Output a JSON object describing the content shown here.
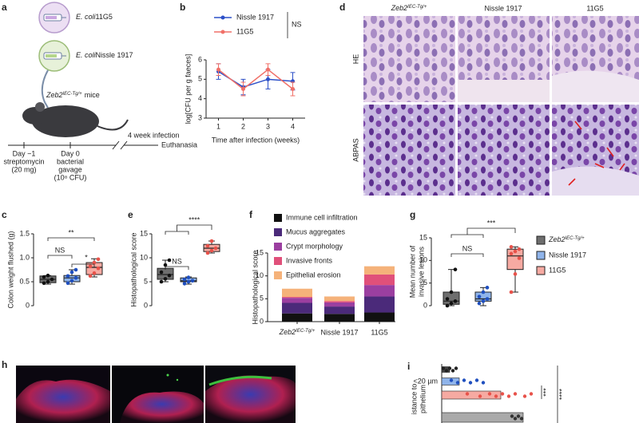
{
  "panel_labels": [
    "a",
    "b",
    "c",
    "d",
    "e",
    "f",
    "g",
    "h",
    "i"
  ],
  "schematic": {
    "strains": [
      {
        "species": "E. coli",
        "strain": "11G5"
      },
      {
        "species": "E. coli",
        "strain": "Nissle 1917"
      }
    ],
    "mouse": {
      "gene": "Zeb2",
      "superscript": "IEC-Tg/+",
      "label": "mice"
    },
    "infection": "4 week infection",
    "timeline": [
      [
        "Day −1",
        "streptomycin",
        "(20 mg)"
      ],
      [
        "Day 0",
        "bacterial",
        "gavage",
        "(10⁸ CFU)"
      ],
      [
        "Euthanasia"
      ]
    ]
  },
  "histology": {
    "columns": [
      {
        "gene": "Zeb2",
        "superscript": "IEC-Tg/+"
      },
      {
        "name": "Nissle 1917"
      },
      {
        "name": "11G5"
      }
    ],
    "rows": [
      "HE",
      "ABPAS"
    ]
  },
  "chart_data": [
    {
      "type": "line",
      "ylabel": "log[CFU per g faeces]",
      "xlabel": "Time after infection (weeks)",
      "x": [
        1,
        2,
        3,
        4
      ],
      "xlim": [
        0.5,
        4.5
      ],
      "xticks": [
        1,
        2,
        3,
        4
      ],
      "ylim": [
        3,
        6
      ],
      "yticks": [
        3,
        4,
        5,
        6
      ],
      "series": [
        {
          "name": "Nissle 1917",
          "color": "#2d50c8",
          "values": [
            5.4,
            4.6,
            5.0,
            4.9
          ],
          "errors": [
            0.4,
            0.4,
            0.5,
            0.45
          ]
        },
        {
          "name": "11G5",
          "color": "#f07068",
          "values": [
            5.5,
            4.5,
            5.5,
            4.5
          ],
          "errors": [
            0.3,
            0.35,
            0.3,
            0.35
          ]
        }
      ],
      "annotation": "NS"
    },
    {
      "type": "box",
      "ylabel": "Colon weight flushed (g)",
      "ylim": [
        0,
        1.5
      ],
      "yticks": [
        0,
        0.5,
        {
          "value": 1,
          "label": "1.0"
        },
        1.5
      ],
      "series": [
        {
          "color": "#6e6e6e",
          "point_color": "#111111",
          "box": [
            0.45,
            0.48,
            0.55,
            0.62,
            0.63
          ],
          "points": [
            0.47,
            0.5,
            0.55,
            0.6,
            0.63
          ]
        },
        {
          "color": "#8fb4ea",
          "point_color": "#1f4fbf",
          "box": [
            0.45,
            0.5,
            0.58,
            0.63,
            0.75
          ],
          "points": [
            0.47,
            0.52,
            0.58,
            0.62,
            0.7,
            0.75
          ]
        },
        {
          "color": "#f6aaa2",
          "point_color": "#e8524a",
          "box": [
            0.6,
            0.65,
            0.8,
            0.9,
            0.98
          ],
          "points": [
            0.62,
            0.68,
            0.78,
            0.82,
            0.9,
            0.97
          ]
        }
      ],
      "annotations": [
        "NS",
        "*",
        "**"
      ]
    },
    {
      "type": "box",
      "ylabel": "Histopathological score",
      "ylim": [
        0,
        15
      ],
      "yticks": [
        0,
        5,
        10,
        15
      ],
      "series": [
        {
          "color": "#6e6e6e",
          "point_color": "#111111",
          "box": [
            5,
            5.5,
            6.5,
            7.8,
            9.5
          ],
          "points": [
            5,
            5.6,
            6.3,
            7,
            8.5,
            9.5
          ]
        },
        {
          "color": "#8fb4ea",
          "point_color": "#1f4fbf",
          "box": [
            4.5,
            5,
            5.2,
            5.8,
            6
          ],
          "points": [
            4.6,
            5,
            5.2,
            5.5,
            5.9
          ]
        },
        {
          "color": "#f6aaa2",
          "point_color": "#e8524a",
          "box": [
            11,
            11.3,
            12,
            12.8,
            13.5
          ],
          "points": [
            11,
            11.5,
            12,
            12.5,
            13.5
          ]
        }
      ],
      "annotations": [
        "NS",
        "****"
      ]
    },
    {
      "type": "stacked_bar",
      "ylabel": "Histopathological score",
      "ylim": [
        0,
        15
      ],
      "yticks": [
        0,
        5,
        10,
        15
      ],
      "categories": [
        "Zeb2",
        "Nissle 1917",
        "11G5"
      ],
      "category_superscripts": [
        "IEC-Tg/+",
        null,
        null
      ],
      "series": [
        {
          "name": "Immune cell infiltration",
          "color": "#111111",
          "values": [
            1.8,
            1.7,
            2.0
          ]
        },
        {
          "name": "Mucus aggregates",
          "color": "#4b2a7a",
          "values": [
            2.3,
            1.6,
            3.5
          ]
        },
        {
          "name": "Crypt morphology",
          "color": "#9b3fa0",
          "values": [
            1.1,
            0.9,
            2.5
          ]
        },
        {
          "name": "Invasive fronts",
          "color": "#e0507a",
          "values": [
            0.2,
            0.3,
            2.3
          ]
        },
        {
          "name": "Epithelial erosion",
          "color": "#f5b27a",
          "values": [
            1.8,
            1.0,
            1.8
          ]
        }
      ]
    },
    {
      "type": "box",
      "ylabel_lines": [
        "Mean number of",
        "invasive lesions"
      ],
      "ylim": [
        0,
        15
      ],
      "yticks": [
        0,
        5,
        10,
        15
      ],
      "series": [
        {
          "name": "Zeb2",
          "name_superscript": "IEC-Tg/+",
          "color": "#6e6e6e",
          "point_color": "#111111",
          "box": [
            0,
            0.3,
            1,
            3,
            8
          ],
          "points": [
            0,
            0.5,
            1,
            1.5,
            3,
            8
          ]
        },
        {
          "name": "Nissle 1917",
          "color": "#8fb4ea",
          "point_color": "#1f4fbf",
          "box": [
            0,
            1,
            1.5,
            3,
            4
          ],
          "points": [
            0.5,
            1,
            1.5,
            2,
            3,
            4
          ]
        },
        {
          "name": "11G5",
          "color": "#f6aaa2",
          "point_color": "#e8524a",
          "box": [
            3,
            8,
            11,
            12.5,
            13
          ],
          "points": [
            3,
            7,
            10.5,
            11.5,
            12,
            12.5,
            13
          ]
        }
      ],
      "annotations": [
        "NS",
        "***"
      ]
    },
    {
      "type": "hbar",
      "ylabel_lines": [
        "istance to",
        "pithelium"
      ],
      "categories": [
        null,
        "<20 µm",
        null,
        null
      ],
      "values": [
        5,
        11,
        37,
        51
      ],
      "colors": [
        "#444444",
        "#8fb4ea",
        "#f6aaa2",
        "#aaaaaa"
      ],
      "point_colors": [
        "#222222",
        "#1f4fbf",
        "#e8524a",
        "#333333"
      ],
      "points": [
        [
          1,
          3,
          5,
          7,
          9
        ],
        [
          6,
          10,
          14,
          18,
          22,
          26
        ],
        [
          16,
          24,
          30,
          34,
          38,
          42,
          46,
          52,
          56
        ],
        [
          44,
          46,
          48,
          50
        ]
      ],
      "annotations": [
        "***",
        "****"
      ]
    }
  ]
}
